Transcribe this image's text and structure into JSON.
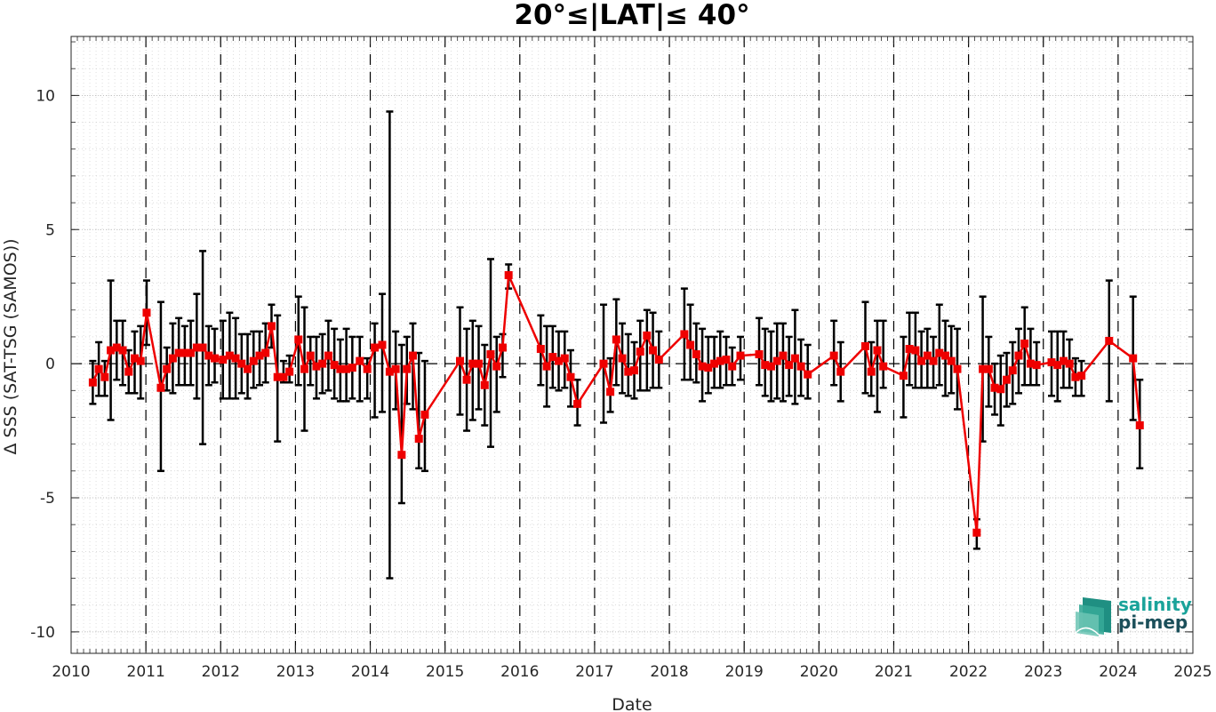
{
  "chart_data": {
    "type": "line",
    "title": "20°≤|LAT|≤ 40°",
    "xlabel": "Date",
    "ylabel": "Δ SSS (SAT-TSG (SAMOS))",
    "xlim": [
      2010,
      2025
    ],
    "ylim": [
      -10.8,
      12.2
    ],
    "x_ticks": [
      "2010",
      "2011",
      "2012",
      "2013",
      "2014",
      "2015",
      "2016",
      "2017",
      "2018",
      "2019",
      "2020",
      "2021",
      "2022",
      "2023",
      "2024",
      "2025"
    ],
    "y_ticks": [
      "-10",
      "-5",
      "0",
      "5",
      "10"
    ],
    "grid": true,
    "zero_line": true,
    "year_separators": true,
    "colors": {
      "series": "#ee0000",
      "error_bars": "#000000"
    },
    "series": [
      {
        "marker": "square",
        "x": [
          2010.29,
          2010.37,
          2010.45,
          2010.53,
          2010.61,
          2010.69,
          2010.77,
          2010.85,
          2010.93,
          2011.01,
          2011.2,
          2011.28,
          2011.36,
          2011.44,
          2011.52,
          2011.6,
          2011.68,
          2011.76,
          2011.84,
          2011.92,
          2012.03,
          2012.12,
          2012.2,
          2012.28,
          2012.36,
          2012.44,
          2012.52,
          2012.6,
          2012.68,
          2012.76,
          2012.84,
          2012.92,
          2013.04,
          2013.12,
          2013.2,
          2013.28,
          2013.36,
          2013.44,
          2013.52,
          2013.6,
          2013.68,
          2013.76,
          2013.86,
          2013.96,
          2014.06,
          2014.16,
          2014.26,
          2014.34,
          2014.42,
          2014.49,
          2014.57,
          2014.65,
          2014.73,
          2014.81,
          2015.2,
          2015.29,
          2015.37,
          2015.45,
          2015.53,
          2015.61,
          2015.69,
          2015.77,
          2015.85,
          2016.28,
          2016.36,
          2016.44,
          2016.52,
          2016.6,
          2016.68,
          2016.77,
          2017.12,
          2017.21,
          2017.29,
          2017.37,
          2017.45,
          2017.53,
          2017.61,
          2017.7,
          2017.78,
          2017.86,
          2018.2,
          2018.28,
          2018.36,
          2018.44,
          2018.52,
          2018.6,
          2018.68,
          2018.76,
          2018.84,
          2018.95,
          2019.2,
          2019.28,
          2019.36,
          2019.44,
          2019.52,
          2019.6,
          2019.68,
          2019.76,
          2019.85,
          2020.2,
          2020.29,
          2020.62,
          2020.7,
          2020.78,
          2020.86,
          2021.13,
          2021.21,
          2021.29,
          2021.37,
          2021.45,
          2021.53,
          2021.61,
          2021.69,
          2021.77,
          2021.85,
          2022.11,
          2022.19,
          2022.27,
          2022.35,
          2022.43,
          2022.51,
          2022.59,
          2022.67,
          2022.75,
          2022.83,
          2022.91,
          2022.99,
          2023.11,
          2023.19,
          2023.27,
          2023.35,
          2023.43,
          2023.51,
          2023.88,
          2024.2,
          2024.29
        ],
        "y": [
          -0.7,
          -0.2,
          -0.5,
          0.5,
          0.6,
          0.5,
          -0.3,
          0.2,
          0.1,
          1.9,
          -0.9,
          -0.2,
          0.2,
          0.4,
          0.4,
          0.4,
          0.6,
          0.6,
          0.3,
          0.2,
          0.15,
          0.3,
          0.2,
          0.0,
          -0.2,
          0.1,
          0.3,
          0.4,
          1.4,
          -0.5,
          -0.5,
          -0.3,
          0.9,
          -0.2,
          0.3,
          -0.1,
          0.0,
          0.3,
          -0.05,
          -0.2,
          -0.2,
          -0.15,
          0.1,
          -0.2,
          0.6,
          0.7,
          -0.3,
          -0.2,
          -3.4,
          -0.2,
          0.3,
          -2.8,
          -1.9,
          null,
          0.1,
          -0.6,
          0.0,
          0.0,
          -0.8,
          0.35,
          -0.1,
          0.6,
          3.3,
          0.55,
          -0.1,
          0.25,
          0.1,
          0.2,
          -0.5,
          -1.5,
          0.0,
          -1.05,
          0.9,
          0.2,
          -0.3,
          -0.25,
          0.45,
          1.05,
          0.5,
          0.15,
          1.1,
          0.7,
          0.35,
          -0.1,
          -0.15,
          0.0,
          0.1,
          0.15,
          -0.1,
          0.3,
          0.35,
          -0.05,
          -0.1,
          0.1,
          0.3,
          -0.05,
          0.2,
          -0.1,
          -0.4,
          0.3,
          -0.3,
          0.65,
          -0.3,
          0.5,
          -0.1,
          -0.45,
          0.55,
          0.5,
          0.1,
          0.3,
          0.1,
          0.4,
          0.3,
          0.1,
          -0.2,
          -6.3,
          -0.2,
          -0.2,
          -0.9,
          -0.95,
          -0.6,
          -0.25,
          0.3,
          0.75,
          0.0,
          -0.05,
          null,
          0.05,
          -0.05,
          0.1,
          0.0,
          -0.5,
          -0.45,
          0.85,
          0.2,
          -2.3
        ],
        "err_low": [
          -1.5,
          -1.2,
          -1.2,
          -2.1,
          -0.6,
          -0.8,
          -1.1,
          -1.1,
          -1.3,
          0.7,
          -4.0,
          -1.0,
          -1.1,
          -0.8,
          -0.8,
          -0.8,
          -1.3,
          -3.0,
          -0.8,
          -0.7,
          -1.3,
          -1.3,
          -1.3,
          -1.1,
          -1.3,
          -0.9,
          -0.8,
          -0.7,
          0.6,
          -2.9,
          -0.7,
          -0.7,
          -0.8,
          -2.5,
          -0.8,
          -1.3,
          -1.1,
          -1.0,
          -1.3,
          -1.4,
          -1.4,
          -1.3,
          -1.4,
          -1.3,
          -2.0,
          -1.8,
          -8.0,
          -1.7,
          -5.2,
          -1.5,
          -1.7,
          -3.9,
          -4.0,
          null,
          -1.9,
          -2.5,
          -2.1,
          -1.7,
          -2.3,
          -3.1,
          -1.8,
          -0.5,
          2.8,
          -0.8,
          -1.6,
          -0.9,
          -1.0,
          -0.9,
          -1.6,
          -2.3,
          -2.2,
          -1.8,
          -0.8,
          -1.1,
          -1.2,
          -1.3,
          -1.0,
          -1.0,
          -0.9,
          -0.9,
          -0.6,
          -0.6,
          -0.7,
          -1.4,
          -1.1,
          -0.9,
          -0.9,
          -0.8,
          -0.8,
          -0.6,
          -0.8,
          -1.2,
          -1.4,
          -1.3,
          -1.4,
          -1.2,
          -1.5,
          -1.2,
          -1.3,
          -0.8,
          -1.4,
          -1.1,
          -1.2,
          -1.8,
          -0.9,
          -2.0,
          -0.8,
          -0.9,
          -0.9,
          -0.9,
          -0.9,
          -0.8,
          -1.2,
          -1.1,
          -1.7,
          -6.9,
          -2.9,
          -1.6,
          -1.9,
          -2.3,
          -1.6,
          -1.5,
          -1.1,
          -0.8,
          -0.8,
          -0.8,
          null,
          -1.2,
          -1.4,
          -0.9,
          -0.9,
          -1.2,
          -1.2,
          -1.4,
          -2.1,
          -3.9
        ],
        "err_high": [
          0.1,
          0.8,
          0.1,
          3.1,
          1.6,
          1.6,
          0.5,
          1.2,
          1.4,
          3.1,
          2.3,
          0.6,
          1.5,
          1.7,
          1.4,
          1.6,
          2.6,
          4.2,
          1.4,
          1.3,
          1.6,
          1.9,
          1.7,
          1.1,
          1.1,
          1.2,
          1.2,
          1.5,
          2.2,
          1.8,
          0.1,
          0.3,
          2.5,
          2.1,
          1.0,
          1.0,
          1.1,
          1.6,
          1.3,
          0.9,
          1.3,
          1.0,
          1.0,
          0.2,
          1.5,
          2.6,
          9.4,
          1.2,
          0.7,
          1.0,
          1.5,
          0.4,
          0.1,
          null,
          2.1,
          1.3,
          1.6,
          1.4,
          0.7,
          3.9,
          1.0,
          1.1,
          3.7,
          1.8,
          1.4,
          1.4,
          1.2,
          1.2,
          0.5,
          -0.6,
          2.2,
          0.2,
          2.4,
          1.5,
          1.1,
          0.8,
          1.6,
          2.0,
          1.9,
          1.2,
          2.8,
          2.2,
          1.5,
          1.3,
          1.0,
          1.0,
          1.2,
          1.0,
          0.6,
          1.0,
          1.7,
          1.3,
          1.2,
          1.5,
          1.5,
          1.0,
          2.0,
          0.9,
          0.7,
          1.6,
          0.8,
          2.3,
          0.8,
          1.6,
          1.6,
          1.0,
          1.9,
          1.9,
          1.2,
          1.3,
          1.0,
          2.2,
          1.6,
          1.4,
          1.3,
          -5.8,
          2.5,
          1.0,
          0.0,
          0.3,
          0.4,
          0.8,
          1.3,
          2.1,
          1.3,
          0.8,
          null,
          1.2,
          1.2,
          1.2,
          0.9,
          0.2,
          0.1,
          3.1,
          2.5,
          -0.6
        ]
      }
    ]
  },
  "logo": {
    "line1": "salinity",
    "line2": "pi-mep"
  }
}
